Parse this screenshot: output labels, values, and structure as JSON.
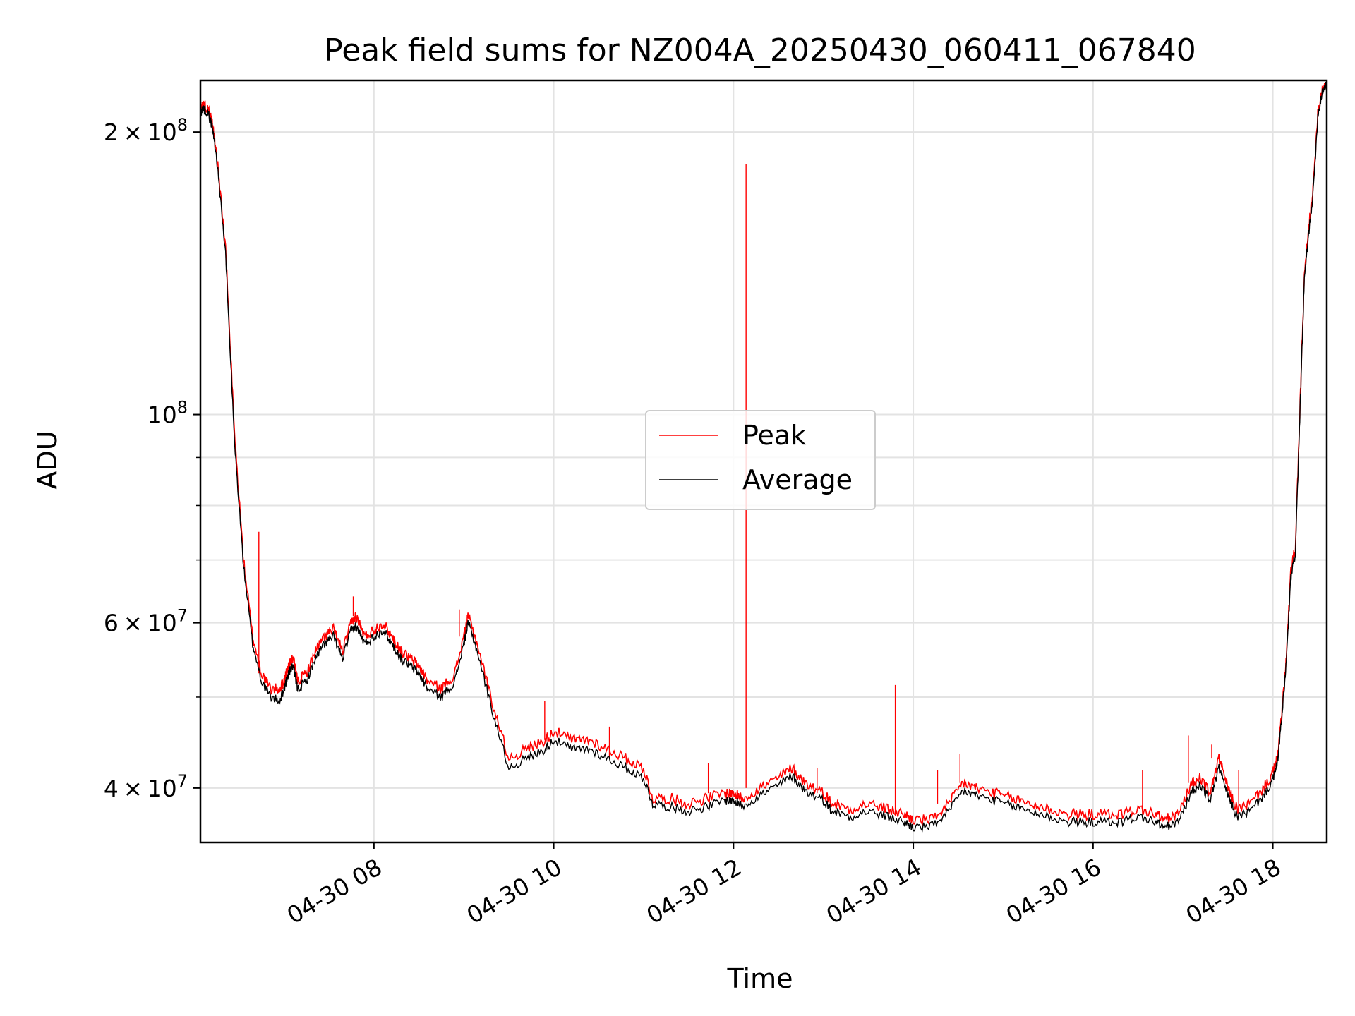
{
  "chart_data": {
    "type": "line",
    "title": "Peak field sums for NZ004A_20250430_060411_067840",
    "xlabel": "Time",
    "ylabel": "ADU",
    "y_scale": "log",
    "xlim_hours": [
      6.07,
      18.6
    ],
    "ylim": [
      35000000,
      227000000
    ],
    "x_ticks": [
      {
        "hour": 8,
        "label": "04-30 08"
      },
      {
        "hour": 10,
        "label": "04-30 10"
      },
      {
        "hour": 12,
        "label": "04-30 12"
      },
      {
        "hour": 14,
        "label": "04-30 14"
      },
      {
        "hour": 16,
        "label": "04-30 16"
      },
      {
        "hour": 18,
        "label": "04-30 18"
      }
    ],
    "y_major_ticks": [
      {
        "value": 40000000,
        "mantissa": "4",
        "exponent": "7"
      },
      {
        "value": 60000000,
        "mantissa": "6",
        "exponent": "7"
      },
      {
        "value": 100000000,
        "mantissa": "",
        "exponent": "8"
      },
      {
        "value": 200000000,
        "mantissa": "2",
        "exponent": "8"
      }
    ],
    "y_minor_gridlines": [
      50000000,
      70000000,
      80000000,
      90000000
    ],
    "grid": true,
    "legend_position": "center",
    "series": [
      {
        "name": "Peak",
        "color": "#ff0000",
        "x_hours": [
          6.07,
          6.1,
          6.15,
          6.2,
          6.25,
          6.35,
          6.45,
          6.55,
          6.65,
          6.75,
          6.85,
          6.95,
          7.0,
          7.05,
          7.1,
          7.15,
          7.25,
          7.35,
          7.45,
          7.55,
          7.65,
          7.75,
          7.8,
          7.9,
          8.0,
          8.1,
          8.2,
          8.3,
          8.4,
          8.5,
          8.6,
          8.75,
          8.9,
          9.0,
          9.05,
          9.15,
          9.3,
          9.5,
          9.7,
          9.9,
          10.0,
          10.2,
          10.4,
          10.6,
          10.8,
          11.0,
          11.1,
          11.3,
          11.5,
          11.7,
          11.9,
          12.0,
          12.1,
          12.3,
          12.5,
          12.65,
          12.8,
          13.0,
          13.1,
          13.3,
          13.5,
          13.7,
          13.9,
          14.0,
          14.2,
          14.4,
          14.55,
          14.7,
          14.9,
          15.1,
          15.3,
          15.5,
          15.7,
          15.9,
          16.1,
          16.3,
          16.5,
          16.7,
          16.8,
          16.95,
          17.1,
          17.2,
          17.3,
          17.4,
          17.5,
          17.6,
          17.75,
          17.9,
          18.0,
          18.05,
          18.1,
          18.15,
          18.2,
          18.25,
          18.3,
          18.35,
          18.4,
          18.45,
          18.5,
          18.55,
          18.6
        ],
        "values": [
          212000000,
          214000000,
          212000000,
          205000000,
          190000000,
          150000000,
          95000000,
          70000000,
          58000000,
          53000000,
          51000000,
          51000000,
          52000000,
          54000000,
          55000000,
          52000000,
          53000000,
          56000000,
          58000000,
          59000000,
          56000000,
          60000000,
          61000000,
          58000000,
          59000000,
          60000000,
          58000000,
          56000000,
          55000000,
          54000000,
          52000000,
          51000000,
          53000000,
          58000000,
          61000000,
          57000000,
          50000000,
          43000000,
          44000000,
          45000000,
          46000000,
          45000000,
          45000000,
          44000000,
          43000000,
          42000000,
          39000000,
          39000000,
          38500000,
          39000000,
          39500000,
          39500000,
          39000000,
          40000000,
          41000000,
          42000000,
          40500000,
          39500000,
          38500000,
          38000000,
          38500000,
          38000000,
          37500000,
          37000000,
          37000000,
          38500000,
          40500000,
          40000000,
          39500000,
          39000000,
          38500000,
          38000000,
          37500000,
          37500000,
          37500000,
          37500000,
          38000000,
          37500000,
          37000000,
          37500000,
          40500000,
          41000000,
          39500000,
          43000000,
          40000000,
          38000000,
          38500000,
          40000000,
          41500000,
          43000000,
          48000000,
          55000000,
          68000000,
          72000000,
          100000000,
          140000000,
          158000000,
          175000000,
          210000000,
          222000000,
          226000000
        ],
        "spikes": [
          {
            "hour": 6.72,
            "value": 75000000
          },
          {
            "hour": 7.77,
            "value": 64000000
          },
          {
            "hour": 8.95,
            "value": 62000000
          },
          {
            "hour": 9.9,
            "value": 49500000
          },
          {
            "hour": 10.62,
            "value": 46500000
          },
          {
            "hour": 11.72,
            "value": 42500000
          },
          {
            "hour": 12.14,
            "value": 185000000
          },
          {
            "hour": 12.93,
            "value": 42000000
          },
          {
            "hour": 13.8,
            "value": 51500000
          },
          {
            "hour": 14.27,
            "value": 41800000
          },
          {
            "hour": 14.52,
            "value": 43500000
          },
          {
            "hour": 16.55,
            "value": 41800000
          },
          {
            "hour": 17.06,
            "value": 45500000
          },
          {
            "hour": 17.32,
            "value": 44500000
          },
          {
            "hour": 17.62,
            "value": 41800000
          }
        ]
      },
      {
        "name": "Average",
        "color": "#000000",
        "x_hours": [
          6.07,
          6.1,
          6.15,
          6.2,
          6.25,
          6.35,
          6.45,
          6.55,
          6.65,
          6.75,
          6.85,
          6.95,
          7.0,
          7.05,
          7.1,
          7.15,
          7.25,
          7.35,
          7.45,
          7.55,
          7.65,
          7.75,
          7.8,
          7.9,
          8.0,
          8.1,
          8.2,
          8.3,
          8.4,
          8.5,
          8.6,
          8.75,
          8.9,
          9.0,
          9.05,
          9.15,
          9.3,
          9.5,
          9.7,
          9.9,
          10.0,
          10.2,
          10.4,
          10.6,
          10.8,
          11.0,
          11.1,
          11.3,
          11.5,
          11.7,
          11.9,
          12.0,
          12.1,
          12.3,
          12.5,
          12.65,
          12.8,
          13.0,
          13.1,
          13.3,
          13.5,
          13.7,
          13.9,
          14.0,
          14.2,
          14.4,
          14.55,
          14.7,
          14.9,
          15.1,
          15.3,
          15.5,
          15.7,
          15.9,
          16.1,
          16.3,
          16.5,
          16.7,
          16.8,
          16.95,
          17.1,
          17.2,
          17.3,
          17.4,
          17.5,
          17.6,
          17.75,
          17.9,
          18.0,
          18.05,
          18.1,
          18.15,
          18.2,
          18.25,
          18.3,
          18.35,
          18.4,
          18.45,
          18.5,
          18.55,
          18.6
        ],
        "values": [
          210000000,
          212000000,
          210000000,
          203000000,
          188000000,
          148000000,
          93000000,
          69000000,
          57000000,
          52000000,
          50000000,
          49500000,
          51000000,
          53000000,
          54000000,
          51000000,
          52000000,
          55000000,
          57000000,
          58000000,
          55000000,
          59000000,
          59500000,
          57000000,
          58000000,
          59000000,
          57000000,
          55000000,
          54000000,
          53000000,
          51000000,
          50000000,
          52000000,
          57000000,
          60000000,
          56000000,
          49000000,
          42000000,
          43000000,
          44000000,
          45000000,
          44000000,
          44000000,
          43000000,
          42000000,
          41000000,
          38500000,
          38200000,
          37800000,
          38200000,
          38800000,
          38800000,
          38300000,
          39300000,
          40300000,
          41200000,
          39700000,
          38800000,
          37800000,
          37300000,
          37800000,
          37300000,
          36800000,
          36300000,
          36400000,
          37800000,
          39700000,
          39300000,
          38800000,
          38300000,
          37800000,
          37300000,
          36800000,
          36800000,
          36800000,
          36800000,
          37300000,
          36800000,
          36300000,
          36800000,
          39700000,
          40300000,
          38800000,
          42000000,
          39300000,
          37300000,
          37800000,
          39300000,
          40800000,
          42500000,
          47500000,
          54500000,
          67000000,
          71000000,
          99000000,
          139000000,
          156000000,
          173000000,
          208000000,
          221000000,
          225000000
        ]
      }
    ]
  }
}
